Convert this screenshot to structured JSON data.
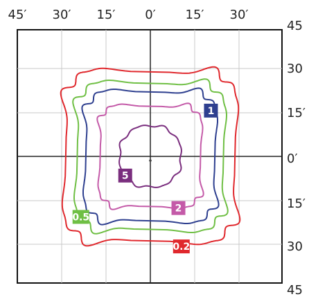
{
  "chart_data": {
    "type": "line",
    "top_ticks": [
      "45′",
      "30′",
      "15′",
      "0′",
      "15′",
      "30′"
    ],
    "right_ticks": [
      "45",
      "30",
      "15′",
      "0′",
      "15′",
      "30",
      "45"
    ],
    "grid": true,
    "series": [
      {
        "name": "0.2",
        "color": "#e0282d",
        "half_width": 29.5
      },
      {
        "name": "0.5",
        "color": "#6fbf44",
        "half_width": 25.5
      },
      {
        "name": "1",
        "color": "#2e3f8f",
        "half_width": 22.5
      },
      {
        "name": "2",
        "color": "#c45aa8",
        "half_width": 17.5
      },
      {
        "name": "5",
        "color": "#7a2e7e",
        "half_width": 10.5
      }
    ],
    "labels": [
      {
        "text": "1",
        "color": "#2e3f8f",
        "x": 20.5,
        "y": 15.5
      },
      {
        "text": "5",
        "color": "#7a2e7e",
        "x": -8.5,
        "y": -6.5
      },
      {
        "text": "2",
        "color": "#c45aa8",
        "x": 9.5,
        "y": -17.5
      },
      {
        "text": "0.5",
        "color": "#6fbf44",
        "x": -23.5,
        "y": -20.5
      },
      {
        "text": "0.2",
        "color": "#e0282d",
        "x": 10.5,
        "y": -30.5
      }
    ]
  }
}
